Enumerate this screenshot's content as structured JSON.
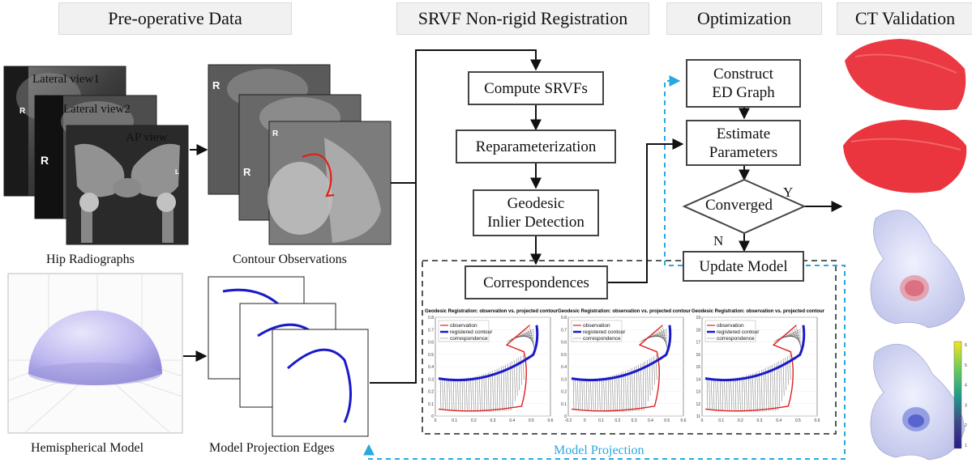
{
  "headers": {
    "pre_operative": "Pre-operative Data",
    "srvf": "SRVF Non-rigid Registration",
    "optimization": "Optimization",
    "ct_validation": "CT Validation"
  },
  "xray_labels": {
    "lateral1": "Lateral view1",
    "lateral2": "Lateral view2",
    "ap": "AP view",
    "marker_r": "R",
    "marker_l": "L"
  },
  "captions": {
    "hip_radiographs": "Hip Radiographs",
    "contour_observations": "Contour Observations",
    "hemispherical_model": "Hemispherical Model",
    "model_projection_edges": "Model Projection Edges",
    "model_projection": "Model Projection"
  },
  "flow": {
    "compute_srvfs": "Compute SRVFs",
    "reparameterization": "Reparameterization",
    "geodesic_line1": "Geodesic",
    "geodesic_line2": "Inlier Detection",
    "correspondences": "Correspondences",
    "construct_line1": "Construct",
    "construct_line2": "ED Graph",
    "estimate_line1": "Estimate",
    "estimate_line2": "Parameters",
    "converged": "Converged",
    "yes": "Y",
    "no": "N",
    "update_model": "Update Model"
  },
  "plots": {
    "title": "Geodesic Registration: observation vs. projected contour",
    "legend": [
      "observation",
      "registered contour",
      "correspondence"
    ],
    "panels": [
      {
        "yticks": [
          "0.8",
          "0.7",
          "0.6",
          "0.5",
          "0.4",
          "0.3",
          "0.2",
          "0.1",
          "0"
        ],
        "xticks": [
          "0",
          "0.1",
          "0.2",
          "0.3",
          "0.4",
          "0.5",
          "0.6"
        ]
      },
      {
        "yticks": [
          "0.8",
          "0.7",
          "0.6",
          "0.5",
          "0.4",
          "0.3",
          "0.2",
          "0.1",
          "0"
        ],
        "xticks": [
          "-0.2",
          "0",
          "0.1",
          "0.2",
          "0.3",
          "0.4",
          "0.5",
          "0.6"
        ]
      },
      {
        "yticks": [
          "19",
          "18",
          "17",
          "16",
          "15",
          "14",
          "13",
          "12",
          "11"
        ],
        "xticks": [
          "0",
          "0.1",
          "0.2",
          "0.3",
          "0.4",
          "0.5",
          "0.6"
        ]
      }
    ]
  },
  "colorbar": {
    "ticks": [
      "6",
      "5",
      "4",
      "3",
      "2",
      "1"
    ]
  },
  "colors": {
    "observation": "#e0201e",
    "registered_contour": "#1a1acb",
    "arrow": "#111111",
    "loop": "#29a8e0",
    "mesh_red": "#e8242e",
    "mesh_grey": "#c8cdf0"
  }
}
